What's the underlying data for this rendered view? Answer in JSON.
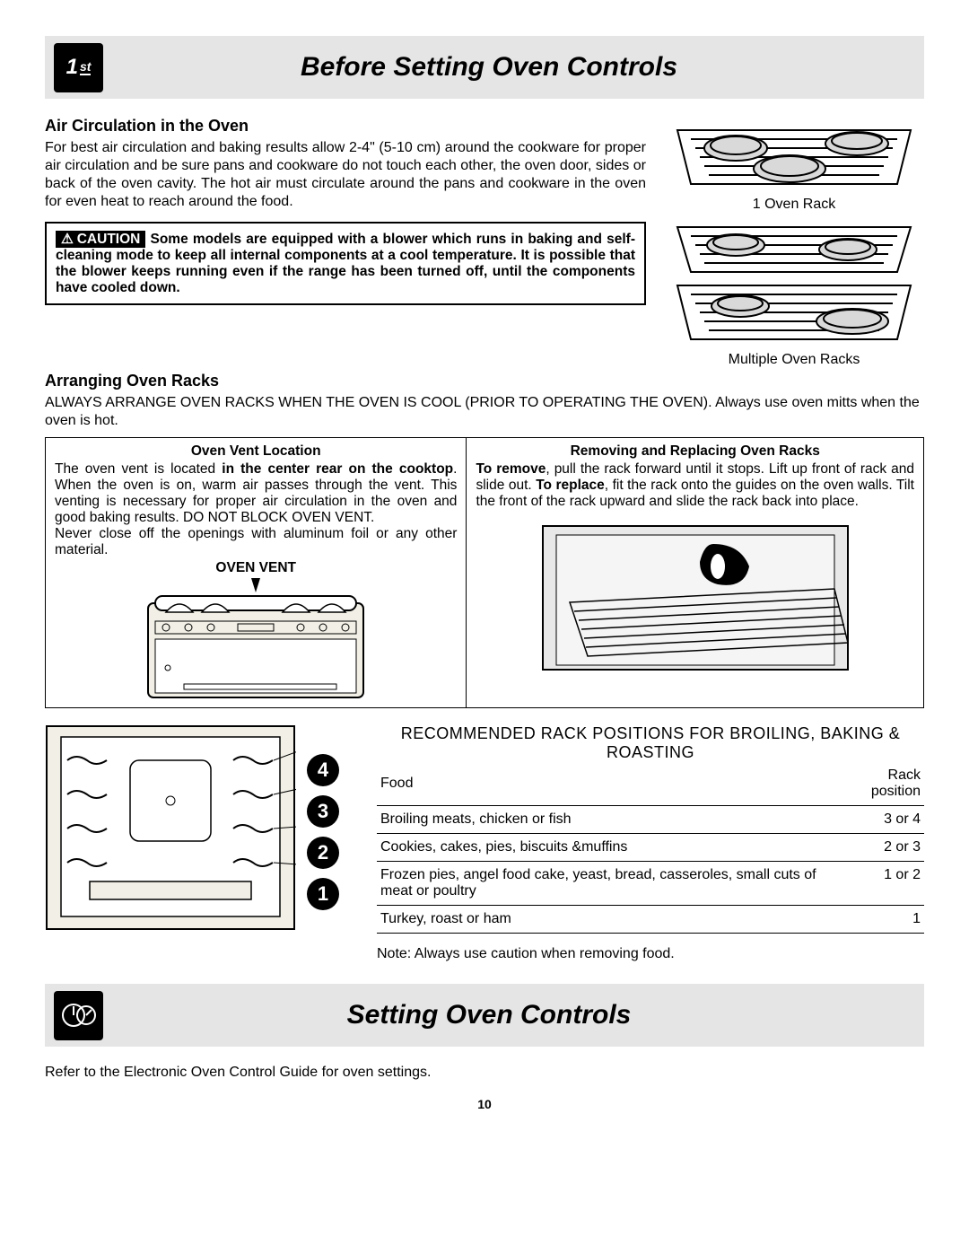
{
  "logo": {
    "main": "1",
    "sup": "st"
  },
  "title1": "Before Setting Oven Controls",
  "title2": "Setting Oven Controls",
  "air": {
    "heading": "Air Circulation in the Oven",
    "body": "For best air circulation and baking results allow 2-4\" (5-10 cm) around  the cookware for proper air circulation and be sure pans and cookware do not touch each other, the oven door, sides or back of the oven cavity. The hot air must circulate around the pans and cookware  in the oven for even heat to reach around the food."
  },
  "caution": {
    "tag": "CAUTION",
    "text": " Some models are equipped with a blower which runs in baking and self-cleaning mode to keep all internal components at a cool temperature. It is possible that the blower keeps running even if the range has been turned off, until the components have cooled down."
  },
  "figcap1": "1 Oven Rack",
  "figcap2": "Multiple Oven Racks",
  "arrange": {
    "heading": "Arranging Oven Racks",
    "body": "ALWAYS ARRANGE OVEN RACKS WHEN THE OVEN IS COOL (PRIOR TO OPERATING THE OVEN). Always use oven mitts when the oven is hot."
  },
  "vent": {
    "heading": "Oven Vent Location",
    "p1a": "The oven vent is located ",
    "p1b": "in the center rear on the cooktop",
    "p1c": ". When the oven is on, warm air passes through the vent. This venting is necessary for proper air circulation in the oven and good baking results. DO NOT BLOCK OVEN VENT.",
    "p2": "Never close off the openings with aluminum foil or any other material.",
    "label": "OVEN VENT"
  },
  "remove": {
    "heading": "Removing and Replacing Oven Racks",
    "b1": "To remove",
    "t1": ", pull the rack forward until it stops. Lift up front of rack and slide out. ",
    "b2": "To replace",
    "t2": ", fit the rack onto the guides on the oven walls. Tilt the front of the rack upward and slide the rack back into place."
  },
  "racktable": {
    "title": "RECOMMENDED RACK POSITIONS FOR BROILING, BAKING & ROASTING",
    "cols": [
      "Food",
      "Rack position"
    ],
    "rows": [
      [
        "Broiling meats, chicken or fish",
        "3 or 4"
      ],
      [
        "Cookies, cakes, pies, biscuits &muffins",
        "2 or 3"
      ],
      [
        "Frozen pies, angel food cake, yeast, bread, casseroles, small cuts of meat or poultry",
        "1 or 2"
      ],
      [
        "Turkey, roast or ham",
        "1"
      ]
    ],
    "note": "Note: Always use caution when removing food."
  },
  "bullets": [
    "4",
    "3",
    "2",
    "1"
  ],
  "bottom": "Refer to the Electronic Oven Control Guide for oven settings.",
  "pagenum": "10",
  "colors": {
    "gray": "#e5e5e5",
    "ltgray": "#d9d9d9",
    "cream": "#f2f0e6"
  }
}
